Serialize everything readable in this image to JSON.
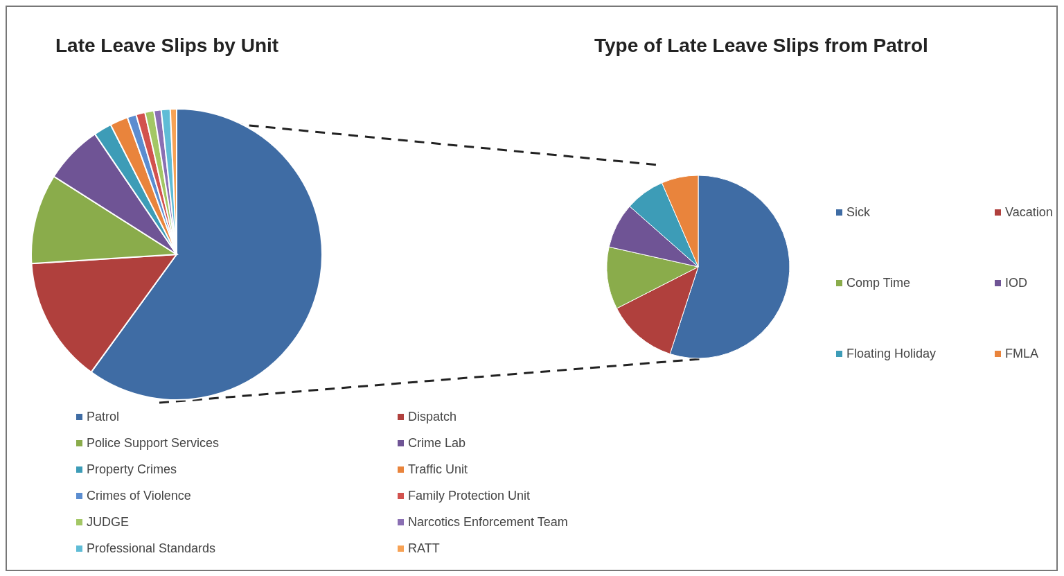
{
  "chart_data": [
    {
      "type": "pie",
      "title": "Late Leave Slips by Unit",
      "legend": "bottom",
      "categories": [
        "Patrol",
        "Dispatch",
        "Police Support Services",
        "Crime Lab",
        "Property Crimes",
        "Traffic Unit",
        "Crimes of Violence",
        "Family Protection Unit",
        "JUDGE",
        "Narcotics Enforcement Team",
        "Professional Standards",
        "RATT"
      ],
      "values": [
        60,
        14,
        10,
        6.5,
        2,
        2,
        1,
        1,
        1,
        0.8,
        1,
        0.7
      ],
      "colors": [
        "#3f6ca4",
        "#b0403d",
        "#8aac4b",
        "#6f5495",
        "#3d9cb7",
        "#e9843c",
        "#5b8dd0",
        "#d2524e",
        "#a3c765",
        "#8a6fb3",
        "#5fbcd6",
        "#f7a255"
      ]
    },
    {
      "type": "pie",
      "title": "Type of Late Leave Slips from Patrol",
      "legend": "right",
      "categories": [
        "Sick",
        "Vacation",
        "Comp Time",
        "IOD",
        "Floating Holiday",
        "FMLA"
      ],
      "values": [
        55,
        12.5,
        11,
        8,
        7,
        6.5
      ],
      "colors": [
        "#3f6ca4",
        "#b0403d",
        "#8aac4b",
        "#6f5495",
        "#3d9cb7",
        "#e9843c"
      ]
    }
  ]
}
